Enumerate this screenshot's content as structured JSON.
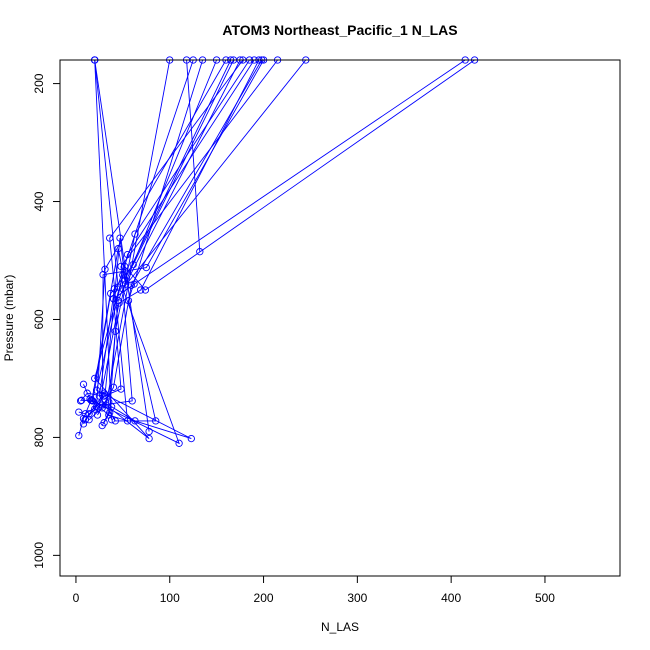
{
  "chart_data": {
    "type": "line",
    "title": "ATOM3 Northeast_Pacific_1 N_LAS",
    "xlabel": "N_LAS",
    "ylabel": "Pressure (mbar)",
    "xlim": [
      -17,
      580
    ],
    "ylim": [
      1035,
      160
    ],
    "y_reversed": true,
    "x_ticks": [
      0,
      100,
      200,
      300,
      400,
      500
    ],
    "y_ticks": [
      200,
      400,
      600,
      800,
      1000
    ],
    "grid": false,
    "series_color": "#0000ff",
    "series": [
      {
        "points": [
          [
            5,
            738
          ],
          [
            12,
            725
          ],
          [
            30,
            730
          ],
          [
            48,
            718
          ],
          [
            40,
            565
          ],
          [
            125,
            160
          ]
        ]
      },
      {
        "points": [
          [
            3,
            757
          ],
          [
            10,
            760
          ],
          [
            22,
            748
          ],
          [
            31,
            515
          ],
          [
            160,
            160
          ]
        ]
      },
      {
        "points": [
          [
            8,
            710
          ],
          [
            15,
            735
          ],
          [
            28,
            745
          ],
          [
            60,
            738
          ],
          [
            48,
            510
          ],
          [
            215,
            160
          ]
        ]
      },
      {
        "points": [
          [
            3,
            797
          ],
          [
            8,
            768
          ],
          [
            16,
            737
          ],
          [
            35,
            762
          ],
          [
            55,
            772
          ],
          [
            36,
            462
          ],
          [
            178,
            160
          ]
        ]
      },
      {
        "points": [
          [
            8,
            777
          ],
          [
            14,
            760
          ],
          [
            24,
            750
          ],
          [
            46,
            572
          ],
          [
            69,
            550
          ],
          [
            195,
            160
          ]
        ]
      },
      {
        "points": [
          [
            10,
            770
          ],
          [
            20,
            752
          ],
          [
            31,
            728
          ],
          [
            47,
            462
          ],
          [
            53,
            540
          ],
          [
            175,
            160
          ]
        ]
      },
      {
        "points": [
          [
            6,
            737
          ],
          [
            18,
            738
          ],
          [
            37,
            556
          ],
          [
            61,
            507
          ],
          [
            168,
            160
          ]
        ]
      },
      {
        "points": [
          [
            30,
            775
          ],
          [
            36,
            758
          ],
          [
            42,
            620
          ],
          [
            63,
            455
          ],
          [
            185,
            160
          ]
        ]
      },
      {
        "points": [
          [
            14,
            770
          ],
          [
            28,
            750
          ],
          [
            29,
            524
          ],
          [
            75,
            512
          ],
          [
            200,
            160
          ]
        ]
      },
      {
        "points": [
          [
            17,
            737
          ],
          [
            45,
            480
          ],
          [
            52,
            533
          ],
          [
            165,
            160
          ]
        ]
      },
      {
        "points": [
          [
            23,
            762
          ],
          [
            40,
            715
          ],
          [
            59,
            542
          ],
          [
            198,
            160
          ]
        ]
      },
      {
        "points": [
          [
            10,
            770
          ],
          [
            30,
            725
          ],
          [
            35,
            740
          ],
          [
            45,
            568
          ],
          [
            150,
            160
          ]
        ]
      },
      {
        "points": [
          [
            28,
            780
          ],
          [
            38,
            748
          ],
          [
            63,
            772
          ],
          [
            123,
            802
          ],
          [
            22,
            720
          ],
          [
            55,
            490
          ],
          [
            190,
            160
          ]
        ]
      },
      {
        "points": [
          [
            41,
            548
          ],
          [
            25,
            730
          ],
          [
            42,
            772
          ],
          [
            85,
            772
          ],
          [
            56,
            568
          ],
          [
            135,
            160
          ]
        ]
      },
      {
        "points": [
          [
            40,
            565
          ],
          [
            62,
            540
          ],
          [
            415,
            160
          ]
        ]
      },
      {
        "points": [
          [
            52,
            510
          ],
          [
            74,
            550
          ],
          [
            425,
            160
          ]
        ]
      },
      {
        "points": [
          [
            18,
            738
          ],
          [
            110,
            810
          ],
          [
            50,
            548
          ],
          [
            245,
            160
          ]
        ]
      },
      {
        "points": [
          [
            50,
            525
          ],
          [
            20,
            700
          ],
          [
            78,
            802
          ],
          [
            32,
            745
          ],
          [
            100,
            160
          ]
        ]
      },
      {
        "points": [
          [
            132,
            485
          ],
          [
            118,
            160
          ]
        ]
      },
      {
        "points": [
          [
            78,
            790
          ],
          [
            20,
            160
          ]
        ]
      },
      {
        "points": [
          [
            38,
            770
          ],
          [
            20,
            160
          ]
        ]
      },
      {
        "points": [
          [
            45,
            545
          ],
          [
            20,
            160
          ]
        ]
      }
    ]
  }
}
